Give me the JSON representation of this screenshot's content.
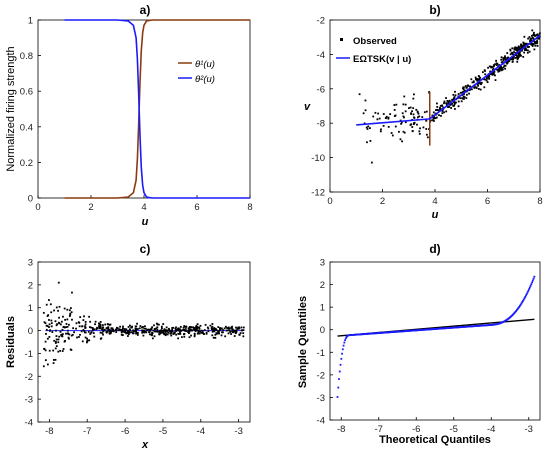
{
  "chart_data": [
    {
      "panel": "a",
      "title": "a)",
      "type": "line",
      "xlabel": "u",
      "ylabel": "Normalized firing strength",
      "xlim": [
        0,
        8
      ],
      "ylim": [
        0,
        1
      ],
      "xticks": [
        "0",
        "2",
        "4",
        "6",
        "8"
      ],
      "yticks": [
        "0",
        "0.2",
        "0.4",
        "0.6",
        "0.8",
        "1"
      ],
      "series": [
        {
          "name": "θ¹(u)",
          "color": "#8B3A0F",
          "x": [
            1,
            2,
            3,
            3.4,
            3.6,
            3.7,
            3.75,
            3.8,
            3.85,
            3.9,
            3.95,
            4.0,
            4.1,
            4.3,
            5,
            6,
            7,
            8
          ],
          "y": [
            0,
            0,
            0,
            0.005,
            0.03,
            0.1,
            0.22,
            0.42,
            0.65,
            0.83,
            0.93,
            0.97,
            0.995,
            1,
            1,
            1,
            1,
            1
          ]
        },
        {
          "name": "θ²(u)",
          "color": "#1a1aff",
          "x": [
            1,
            2,
            3,
            3.4,
            3.6,
            3.7,
            3.75,
            3.8,
            3.85,
            3.9,
            3.95,
            4.0,
            4.1,
            4.3,
            5,
            6,
            7,
            8
          ],
          "y": [
            1,
            1,
            1,
            0.995,
            0.97,
            0.9,
            0.78,
            0.58,
            0.35,
            0.17,
            0.07,
            0.03,
            0.005,
            0,
            0,
            0,
            0,
            0
          ]
        }
      ],
      "legend": "right"
    },
    {
      "panel": "b",
      "title": "b)",
      "type": "scatter",
      "xlabel": "u",
      "ylabel": "v",
      "xlim": [
        0,
        8
      ],
      "ylim": [
        -12,
        -2
      ],
      "xticks": [
        "0",
        "2",
        "4",
        "6",
        "8"
      ],
      "yticks": [
        "-12",
        "-10",
        "-8",
        "-6",
        "-4",
        "-2"
      ],
      "series": [
        {
          "name": "Observed",
          "color": "#000000"
        },
        {
          "name": "EΩTSK(v | u)",
          "color": "#1a1aff",
          "x": [
            1,
            3.8,
            8
          ],
          "y": [
            -8.1,
            -7.75,
            -2.9
          ]
        }
      ],
      "legend": "top-left"
    },
    {
      "panel": "c",
      "title": "c)",
      "type": "scatter",
      "xlabel": "x",
      "ylabel": "Residuals",
      "xlim": [
        -8.3,
        -2.7
      ],
      "ylim": [
        -4,
        3
      ],
      "xticks": [
        "-8",
        "-7",
        "-6",
        "-5",
        "-4",
        "-3"
      ],
      "yticks": [
        "-4",
        "-3",
        "-2",
        "-1",
        "0",
        "1",
        "2",
        "3"
      ]
    },
    {
      "panel": "d",
      "title": "d)",
      "type": "scatter",
      "xlabel": "Theoretical Quantiles",
      "ylabel": "Sample Quantiles",
      "xlim": [
        -8.3,
        -2.7
      ],
      "ylim": [
        -4,
        3
      ],
      "xticks": [
        "-8",
        "-7",
        "-6",
        "-5",
        "-4",
        "-3"
      ],
      "yticks": [
        "-4",
        "-3",
        "-2",
        "-1",
        "0",
        "1",
        "2",
        "3"
      ],
      "reference_line": {
        "x": [
          -8.1,
          -2.85
        ],
        "y": [
          -0.28,
          0.46
        ]
      }
    }
  ]
}
